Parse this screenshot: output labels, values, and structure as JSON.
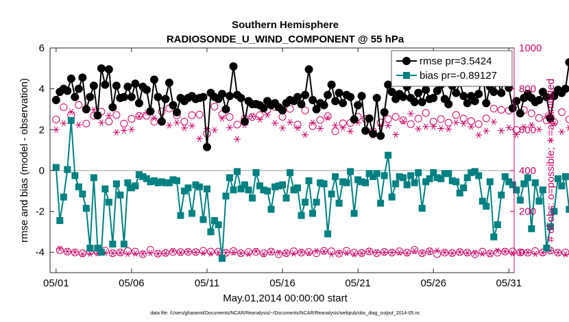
{
  "chart_data": {
    "type": "line",
    "title_line1": "Southern Hemisphere",
    "title_line2": "RADIOSONDE_U_WIND_COMPONENT @ 55 hPa",
    "xlabel": "May.01,2014 00:00:00 start",
    "ylabel_left": "rmse and bias (model - observation)",
    "ylabel_right": "# of obs: o=possible; ∗=assimilated",
    "footnote": "data file: /Users/gharamti/Documents/NCAR/Reanalysis/~/Documents/NCAR/Reanalysis/webpub/obs_diag_output_2014-05.nc",
    "xlim": [
      0.6,
      31.35
    ],
    "ylim_left": [
      -5,
      6
    ],
    "ylim_right": [
      -100,
      1000
    ],
    "x_ticks": [
      1,
      6,
      11,
      16,
      21,
      26,
      31
    ],
    "x_tick_labels": [
      "05/01",
      "05/06",
      "05/11",
      "05/16",
      "05/21",
      "05/26",
      "05/31"
    ],
    "y_ticks_left": [
      -4,
      -2,
      0,
      2,
      4,
      6
    ],
    "y_ticks_right": [
      0,
      200,
      400,
      600,
      800,
      1000
    ],
    "colors": {
      "rmse": "#000000",
      "bias": "#008080",
      "obs": "#cc0066",
      "zero_line": "#bbbbbb"
    },
    "series": [
      {
        "name": "rmse",
        "legend": "rmse pr=3.5424",
        "x_start": 1,
        "x_step": 0.25,
        "values": [
          3.45,
          3.85,
          4.0,
          3.9,
          4.5,
          3.6,
          4.0,
          4.55,
          3.0,
          3.6,
          4.15,
          2.7,
          5.0,
          4.2,
          4.95,
          3.1,
          4.15,
          3.55,
          3.6,
          4.1,
          3.6,
          4.25,
          3.3,
          4.1,
          3.95,
          2.9,
          4.45,
          3.6,
          2.4,
          3.5,
          4.3,
          3.2,
          2.85,
          3.55,
          3.4,
          3.55,
          3.65,
          3.5,
          3.55,
          3.6,
          1.15,
          3.8,
          3.6,
          3.5,
          3.75,
          3.0,
          3.65,
          5.1,
          3.7,
          3.55,
          2.4,
          3.4,
          3.25,
          3.25,
          3.2,
          3.05,
          3.4,
          3.2,
          3.3,
          3.1,
          2.95,
          3.3,
          3.45,
          3.4,
          3.6,
          3.25,
          3.7,
          4.95,
          3.45,
          3.0,
          3.3,
          3.2,
          3.7,
          4.2,
          3.4,
          3.8,
          3.3,
          3.7,
          3.6,
          2.5,
          3.2,
          3.65,
          1.95,
          2.55,
          1.8,
          3.55,
          1.7,
          2.85,
          4.2,
          3.85,
          3.5,
          3.75,
          3.6,
          4.1,
          3.55,
          3.35,
          3.8,
          3.35,
          3.95,
          3.5,
          3.55,
          3.9,
          4.2,
          3.5,
          3.25,
          4.15,
          3.8,
          4.3,
          3.65,
          3.3,
          3.65,
          3.4,
          3.75,
          4.85,
          3.3,
          4.1,
          3.85,
          4.4,
          3.8,
          5.1,
          4.05,
          3.05,
          3.4,
          2.8,
          3.55,
          3.75,
          3.55,
          3.35,
          3.45,
          3.85,
          3.6,
          2.55,
          3.65,
          3.95,
          3.8,
          4.0,
          5.3,
          3.15,
          2.85,
          3.8,
          3.35,
          3.3,
          2.0,
          4.0,
          3.5,
          2.65,
          3.65,
          3.2,
          2.4,
          3.2,
          3.0,
          2.2,
          3.35,
          2.9,
          2.15,
          2.05,
          3.95,
          1.95,
          3.7,
          2.8,
          3.6,
          4.1,
          3.65,
          3.3,
          3.95,
          3.25,
          3.5,
          3.6,
          3.05,
          3.9,
          3.6,
          3.95,
          3.0,
          3.8,
          3.35,
          4.25,
          3.25,
          3.6,
          2.8,
          3.45,
          4.05,
          3.9,
          3.7,
          3.55,
          3.95,
          3.1,
          3.75,
          3.85,
          3.45,
          2.95,
          3.2,
          3.5,
          2.85,
          3.1,
          3.05,
          3.3,
          3.7,
          3.75,
          4.0,
          3.3,
          3.0,
          2.75,
          3.9,
          2.6,
          3.45,
          2.5,
          3.85,
          3.5,
          3.3,
          3.8,
          2.75,
          2.3
        ]
      },
      {
        "name": "bias",
        "legend": "bias pr=-0.89127",
        "x_start": 1,
        "x_step": 0.25,
        "values": [
          0.15,
          -2.45,
          -1.3,
          0.05,
          2.45,
          -0.25,
          -0.8,
          -1.15,
          -1.85,
          -3.8,
          -0.35,
          -3.8,
          -4.0,
          -0.9,
          -1.55,
          -3.6,
          -0.65,
          -1.2,
          -3.6,
          -0.6,
          -0.85,
          -0.75,
          -0.2,
          -0.3,
          -0.4,
          -0.55,
          -0.5,
          -0.6,
          -0.55,
          -0.6,
          -0.6,
          -0.45,
          -0.5,
          -2.2,
          -1.0,
          -0.85,
          -2.1,
          -0.7,
          -0.8,
          -2.4,
          -0.9,
          -3.0,
          -2.45,
          -2.65,
          -4.3,
          -1.25,
          -0.35,
          -0.95,
          -0.05,
          -0.9,
          -0.7,
          -0.95,
          -1.35,
          -0.1,
          -0.75,
          -0.95,
          -1.0,
          -1.9,
          -0.8,
          -0.75,
          -0.7,
          -1.35,
          -0.1,
          -0.95,
          -0.85,
          -2.2,
          -1.55,
          -0.5,
          -2.1,
          -1.55,
          -0.6,
          -0.65,
          -3.1,
          -1.15,
          -0.3,
          -1.6,
          -0.55,
          -0.6,
          -0.05,
          -2.1,
          -0.45,
          -0.55,
          -0.6,
          -0.15,
          -0.3,
          -0.15,
          -1.6,
          -0.25,
          0.75,
          -1.3,
          -0.65,
          -0.3,
          -0.35,
          -0.7,
          -0.25,
          -0.6,
          -0.1,
          -1.85,
          -0.55,
          -0.4,
          -0.1,
          -0.35,
          -0.4,
          -0.15,
          -0.15,
          -0.5,
          -0.55,
          -1.1,
          -0.85,
          -0.35,
          -0.1,
          -0.05,
          -0.25,
          -1.5,
          -1.75,
          -0.55,
          -3.25,
          -2.65,
          -1.2,
          -0.3,
          -0.55,
          -0.7,
          -0.95,
          -1.45,
          -0.65,
          -0.35,
          -2.85,
          -0.6,
          -1.5,
          -0.95,
          -3.8,
          -2.75,
          -2.0,
          -0.4,
          -0.75,
          -0.3,
          -1.9,
          -2.0,
          -3.4,
          -1.15,
          -0.5,
          -0.75,
          -0.3,
          -0.55,
          -0.7,
          -1.85,
          -0.45,
          -0.55,
          -0.6,
          -0.9,
          -0.55,
          -0.25,
          -0.8,
          -3.2,
          -0.6,
          -0.85,
          -0.75,
          0.9,
          -0.35,
          -1.4,
          -0.15,
          -0.3,
          -1.35,
          -0.8,
          -0.35,
          -2.35,
          -1.7,
          -1.0,
          -2.0,
          -1.2,
          -2.3,
          -1.0,
          -0.85,
          -0.3,
          -2.3,
          -0.35,
          -1.2,
          -0.25,
          -0.6,
          -1.95,
          -0.95,
          -0.75,
          -1.15,
          -1.15,
          -0.55,
          -1.8,
          -1.25,
          -0.65,
          -0.4,
          -0.8,
          -1.25,
          -0.65,
          -0.75,
          -1.4,
          -1.15,
          -0.25,
          -0.35,
          -0.15,
          -1.0,
          -0.8,
          -1.75,
          -0.75,
          -1.55,
          -2.0,
          -0.15,
          -0.75,
          1.2,
          -0.65,
          -0.5,
          0.05,
          -0.15,
          -0.35,
          0.45
        ]
      },
      {
        "name": "possible",
        "x_start": 1,
        "x_step": 0.25,
        "values": [
          650,
          10,
          710,
          3,
          672,
          -1,
          721,
          -5,
          630,
          3,
          668,
          2,
          688,
          8,
          640,
          -5,
          672,
          -1,
          630,
          6,
          653,
          3,
          667,
          -10,
          668,
          12,
          639,
          -7,
          689,
          -3,
          704,
          1,
          670,
          1,
          640,
          2,
          671,
          1,
          674,
          7,
          581,
          3,
          713,
          3,
          676,
          -3,
          662,
          6,
          625,
          -5,
          654,
          1,
          662,
          2,
          671,
          -5,
          696,
          3,
          711,
          -10,
          663,
          -5,
          702,
          5,
          625,
          -2,
          694,
          2,
          617,
          -5,
          647,
          7,
          666,
          5,
          592,
          -7,
          631,
          7,
          633,
          -2,
          663,
          -4,
          653,
          4,
          592,
          -5,
          635,
          2,
          652,
          -2,
          663,
          5,
          646,
          -2,
          627,
          12,
          654,
          -5,
          682,
          5,
          639,
          -9,
          652,
          -2,
          634,
          -4,
          672,
          1,
          654,
          -2,
          642,
          -10,
          627,
          3,
          655,
          -6,
          703,
          -2,
          697,
          3,
          693,
          4,
          599,
          -1,
          696,
          -2,
          680,
          6,
          657,
          -1,
          645,
          8,
          637,
          -2,
          686,
          -1,
          650,
          6,
          651,
          -9,
          653,
          5,
          680,
          0,
          633,
          -7,
          651,
          1,
          698,
          -3,
          655,
          -8,
          677,
          6,
          695,
          -10,
          628,
          -7,
          684,
          7,
          635,
          -1,
          653,
          -8,
          691,
          1,
          600,
          0,
          622,
          -1,
          611,
          -3,
          695,
          5,
          641,
          -2,
          624,
          7,
          659,
          3,
          669,
          -1,
          629,
          5,
          646,
          -1,
          650,
          6,
          675,
          -1,
          675,
          0,
          616,
          3,
          597,
          -2,
          623,
          -8,
          698,
          4,
          651,
          -2,
          625,
          -2,
          567,
          -7,
          626,
          -8,
          650,
          -5,
          600,
          -1,
          581,
          -9,
          646,
          -8
        ]
      },
      {
        "name": "assimilated",
        "x_start": 1,
        "x_step": 0.25,
        "values": [
          600,
          17,
          631,
          4,
          687,
          1,
          623,
          -10,
          710,
          -7,
          698,
          -5,
          634,
          -2,
          669,
          -5,
          587,
          -3,
          596,
          -8,
          601,
          -6,
          664,
          -6,
          683,
          -4,
          657,
          -7,
          639,
          -6,
          621,
          6,
          634,
          -3,
          608,
          3,
          619,
          -1,
          556,
          -3,
          606,
          -6,
          598,
          -2,
          655,
          -2,
          610,
          -1,
          553,
          -5,
          623,
          -8,
          665,
          6,
          650,
          -10,
          672,
          0,
          632,
          -2,
          608,
          -4,
          637,
          -6,
          608,
          1,
          575,
          -4,
          634,
          5,
          606,
          3,
          658,
          -9,
          621,
          -3,
          609,
          -3,
          592,
          -9,
          635,
          -6,
          597,
          4,
          572,
          -1,
          618,
          -1,
          620,
          -1,
          576,
          -2,
          640,
          -5,
          678,
          5,
          604,
          -3,
          615,
          3,
          615,
          8,
          606,
          0,
          603,
          -5,
          635,
          1,
          631,
          -4,
          614,
          -3,
          574,
          -6,
          594,
          -6,
          638,
          7,
          595,
          4,
          610,
          -6,
          576,
          -4,
          613,
          -1,
          623,
          -8,
          601,
          -2,
          666,
          8,
          630,
          -2,
          590,
          -10,
          609,
          2,
          621,
          -10,
          638,
          -4,
          651,
          -8,
          607,
          -5,
          598,
          -9,
          601,
          -6,
          550,
          -7,
          641,
          -2,
          638,
          4,
          613,
          -1,
          587,
          -6,
          616,
          -10,
          597,
          -4,
          591,
          0,
          599,
          -4,
          634,
          -3,
          605,
          -7,
          573,
          -6,
          603,
          -6,
          572,
          -8,
          551,
          -5,
          563,
          -10
        ]
      }
    ]
  }
}
